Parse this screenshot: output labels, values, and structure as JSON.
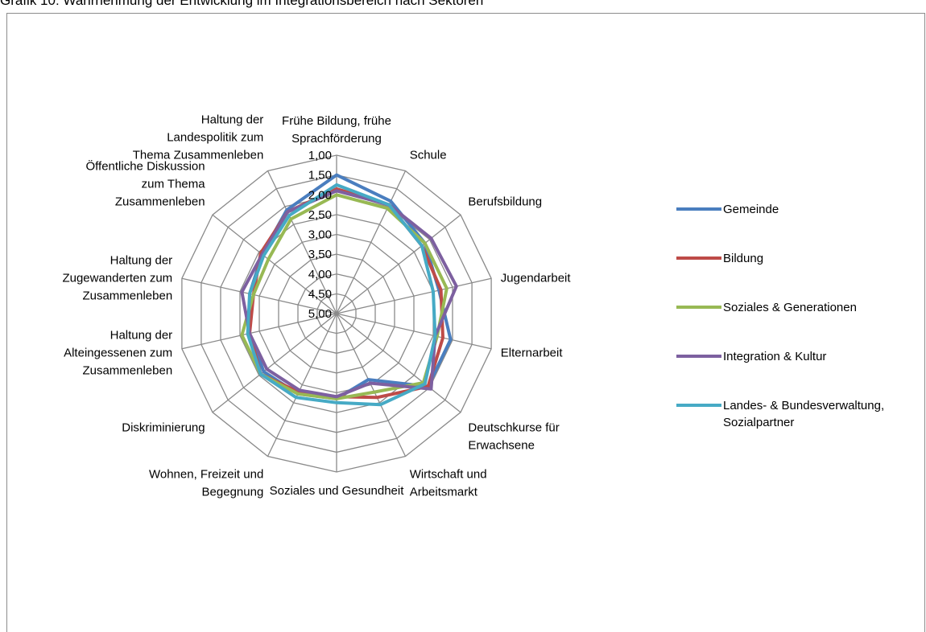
{
  "caption": "Grafik 10: Wahrnehmung der Entwicklung im Integrationsbereich nach Sektoren",
  "chart_data": {
    "type": "radar",
    "title": "",
    "axis_range": [
      5.0,
      1.0
    ],
    "axis_reversed": true,
    "tick_labels": [
      "1,00",
      "1,50",
      "2,00",
      "2,50",
      "3,00",
      "3,50",
      "4,00",
      "4,50",
      "5,00"
    ],
    "tick_values": [
      1.0,
      1.5,
      2.0,
      2.5,
      3.0,
      3.5,
      4.0,
      4.5,
      5.0
    ],
    "grid": true,
    "legend_position": "right",
    "categories": [
      [
        "Frühe Bildung, frühe",
        "Sprachförderung"
      ],
      [
        "Schule"
      ],
      [
        "Berufsbildung"
      ],
      [
        "Jugendarbeit"
      ],
      [
        "Elternarbeit"
      ],
      [
        "Deutschkurse für",
        "Erwachsene"
      ],
      [
        "Wirtschaft und",
        "Arbeitsmarkt"
      ],
      [
        "Soziales und Gesundheit"
      ],
      [
        "Wohnen, Freizeit und",
        "Begegnung"
      ],
      [
        "Diskriminierung"
      ],
      [
        "Haltung der",
        "Alteingessenen zum",
        "Zusammenleben"
      ],
      [
        "Haltung der",
        "Zugewanderten zum",
        "Zusammenleben"
      ],
      [
        "Öffentliche Diskussion",
        "zum Thema",
        "Zusammenleben"
      ],
      [
        "Haltung der",
        "Landespolitik zum",
        "Thema Zusammenleben"
      ]
    ],
    "series": [
      {
        "name": "Gemeinde",
        "color": "#4a7ebf",
        "values": [
          1.5,
          1.85,
          2.15,
          2.35,
          2.05,
          2.05,
          3.15,
          2.85,
          2.75,
          2.65,
          2.75,
          2.75,
          2.6,
          2.1
        ]
      },
      {
        "name": "Bildung",
        "color": "#be4b48",
        "values": [
          1.85,
          1.95,
          2.25,
          2.3,
          2.25,
          2.05,
          2.65,
          2.9,
          2.8,
          2.55,
          2.75,
          2.85,
          2.55,
          2.15
        ]
      },
      {
        "name": "Soziales & Generationen",
        "color": "#98b954",
        "values": [
          2.0,
          2.05,
          2.15,
          2.15,
          2.4,
          2.2,
          2.8,
          2.85,
          2.75,
          2.55,
          2.55,
          2.85,
          2.8,
          2.35
        ]
      },
      {
        "name": "Integration & Kultur",
        "color": "#7d60a0",
        "values": [
          1.9,
          1.95,
          1.95,
          1.9,
          2.45,
          1.95,
          3.05,
          2.9,
          2.85,
          2.75,
          2.75,
          2.55,
          2.6,
          2.15
        ]
      },
      {
        "name": "Landes- & Bundesverwaltung, Sozialpartner",
        "color": "#46aac5",
        "values": [
          1.75,
          1.95,
          2.25,
          2.5,
          2.45,
          2.15,
          2.45,
          2.75,
          2.65,
          2.55,
          2.7,
          2.75,
          2.65,
          2.25
        ]
      }
    ],
    "legend_labels": [
      [
        "Gemeinde"
      ],
      [
        "Bildung"
      ],
      [
        "Soziales & Generationen"
      ],
      [
        "Integration & Kultur"
      ],
      [
        " Landes- & Bundesverwaltung,",
        "Sozialpartner"
      ]
    ]
  }
}
